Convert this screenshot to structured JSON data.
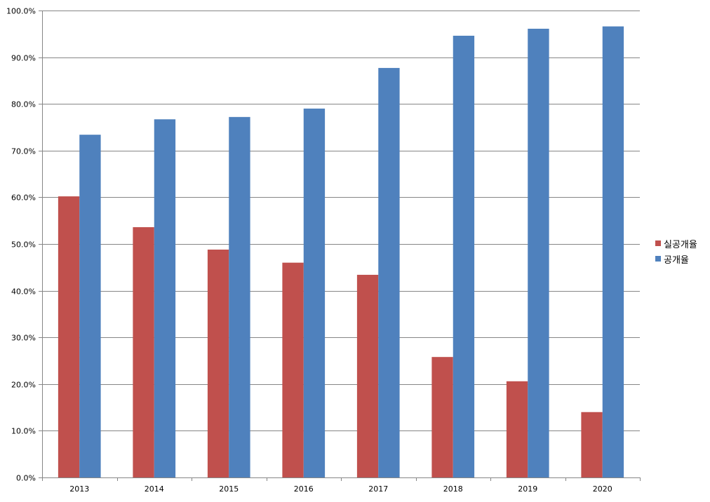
{
  "chart_data": {
    "type": "bar",
    "title": "",
    "xlabel": "",
    "ylabel": "",
    "categories": [
      "2013",
      "2014",
      "2015",
      "2016",
      "2017",
      "2018",
      "2019",
      "2020"
    ],
    "series": [
      {
        "name": "실공개율",
        "color": "#C0504D",
        "values": [
          60.2,
          53.6,
          48.8,
          46.0,
          43.4,
          25.8,
          20.6,
          14.0
        ]
      },
      {
        "name": "공개율",
        "color": "#4F81BD",
        "values": [
          73.4,
          76.7,
          77.2,
          79.0,
          87.7,
          94.6,
          96.1,
          96.6
        ]
      }
    ],
    "ylim": [
      0,
      100
    ],
    "yticks": [
      "0.0%",
      "10.0%",
      "20.0%",
      "30.0%",
      "40.0%",
      "50.0%",
      "60.0%",
      "70.0%",
      "80.0%",
      "90.0%",
      "100.0%"
    ],
    "grid": true,
    "legend_position": "right"
  }
}
